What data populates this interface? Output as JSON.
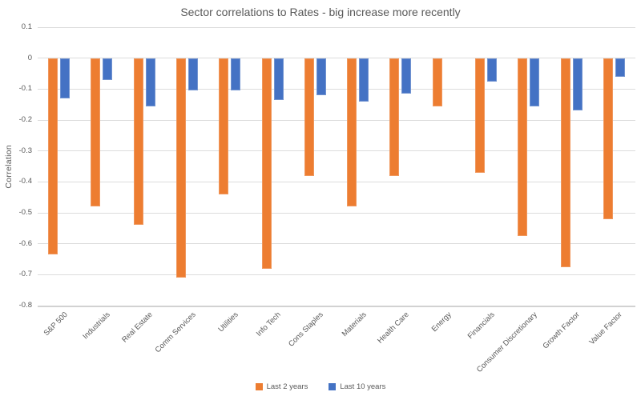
{
  "chart_data": {
    "type": "bar",
    "title": "Sector correlations to Rates - big increase more recently",
    "ylabel": "Correlation",
    "xlabel": "",
    "categories": [
      "S&P 500",
      "Industrials",
      "Real Estate",
      "Comm Services",
      "Utilities",
      "Info Tech",
      "Cons Staples",
      "Materials",
      "Health Care",
      "Energy",
      "Financials",
      "Consumer Discretionary",
      "Growth Factor",
      "Value Factor"
    ],
    "series": [
      {
        "name": "Last 2 years",
        "color": "#ED7D31",
        "values": [
          -0.635,
          -0.48,
          -0.54,
          -0.71,
          -0.44,
          -0.68,
          -0.38,
          -0.48,
          -0.38,
          -0.155,
          -0.37,
          -0.575,
          -0.675,
          -0.52
        ]
      },
      {
        "name": "Last 10 years",
        "color": "#4472C4",
        "values": [
          -0.13,
          -0.07,
          -0.155,
          -0.105,
          -0.105,
          -0.135,
          -0.12,
          -0.14,
          -0.115,
          0,
          -0.075,
          -0.155,
          -0.17,
          -0.06
        ]
      }
    ],
    "ylim": [
      -0.8,
      0.1
    ],
    "ytick_step": 0.1,
    "ytick_labels": [
      "0.1",
      "0",
      "-0.1",
      "-0.2",
      "-0.3",
      "-0.4",
      "-0.5",
      "-0.6",
      "-0.7",
      "-0.8"
    ],
    "grid": true,
    "legend_position": "bottom"
  }
}
